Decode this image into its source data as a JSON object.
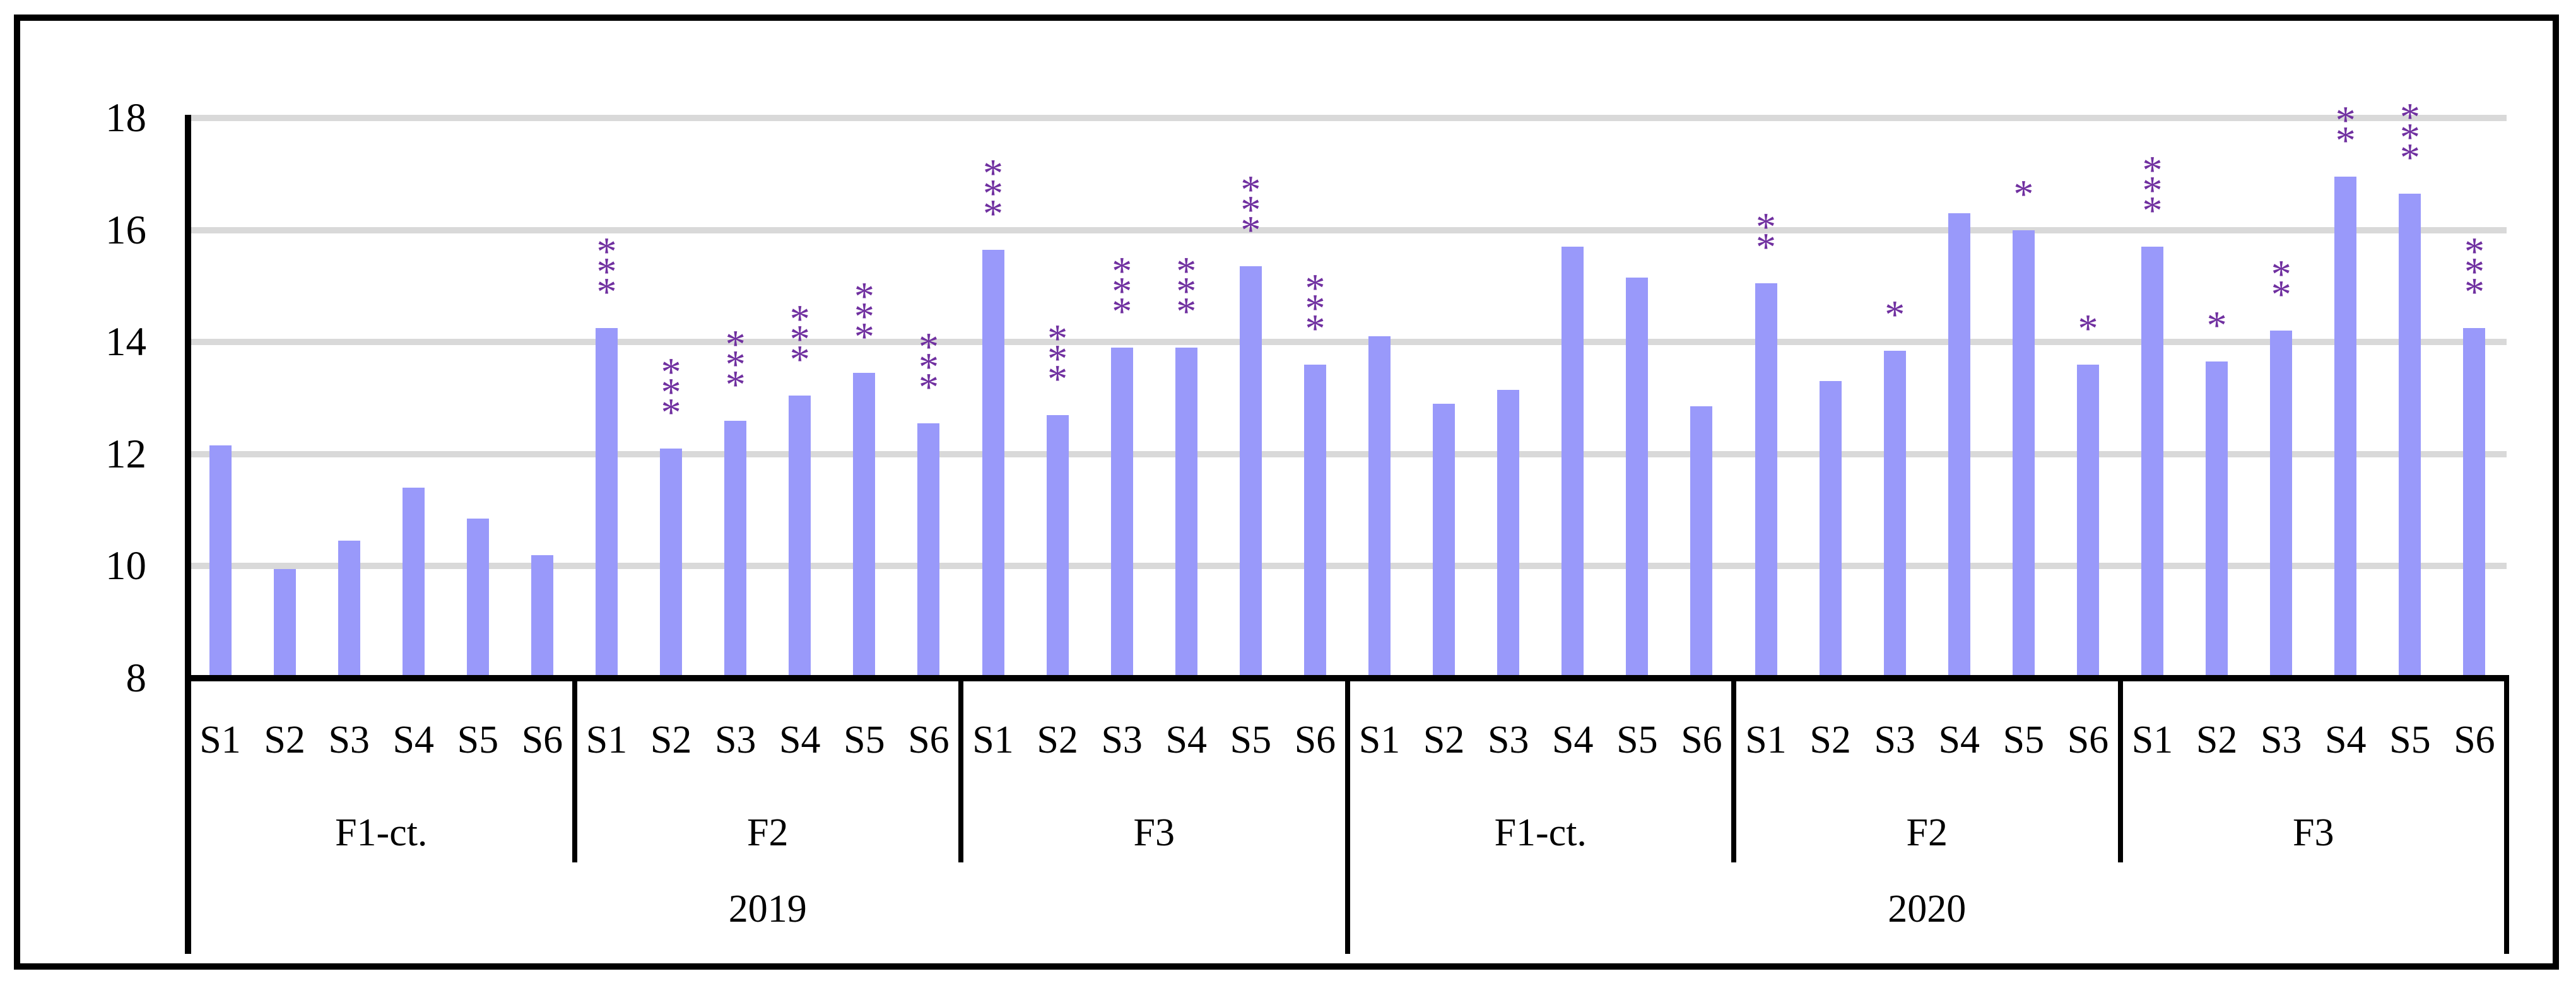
{
  "figure": {
    "background": "#ffffff",
    "border_color": "#000000"
  },
  "chart_data": {
    "type": "bar",
    "title": "",
    "xlabel": "",
    "ylabel": "",
    "ylim": [
      8,
      18
    ],
    "yticks": [
      8,
      10,
      12,
      14,
      16,
      18
    ],
    "grid": true,
    "legend": false,
    "bar_color": "#9999FA",
    "significance_color": "#7030A0",
    "gridline_color": "#D9D9D9",
    "axis_color": "#000000",
    "significance_marker": "*",
    "years": [
      {
        "label": "2019",
        "groups": [
          {
            "label": "F1-ct.",
            "bars": [
              {
                "label": "S1",
                "value": 12.15,
                "stars": 0
              },
              {
                "label": "S2",
                "value": 9.95,
                "stars": 0
              },
              {
                "label": "S3",
                "value": 10.45,
                "stars": 0
              },
              {
                "label": "S4",
                "value": 11.4,
                "stars": 0
              },
              {
                "label": "S5",
                "value": 10.85,
                "stars": 0
              },
              {
                "label": "S6",
                "value": 10.2,
                "stars": 0
              }
            ]
          },
          {
            "label": "F2",
            "bars": [
              {
                "label": "S1",
                "value": 14.25,
                "stars": 3
              },
              {
                "label": "S2",
                "value": 12.1,
                "stars": 3
              },
              {
                "label": "S3",
                "value": 12.6,
                "stars": 3
              },
              {
                "label": "S4",
                "value": 13.05,
                "stars": 3
              },
              {
                "label": "S5",
                "value": 13.45,
                "stars": 3
              },
              {
                "label": "S6",
                "value": 12.55,
                "stars": 3
              }
            ]
          },
          {
            "label": "F3",
            "bars": [
              {
                "label": "S1",
                "value": 15.65,
                "stars": 3
              },
              {
                "label": "S2",
                "value": 12.7,
                "stars": 3
              },
              {
                "label": "S3",
                "value": 13.9,
                "stars": 3
              },
              {
                "label": "S4",
                "value": 13.9,
                "stars": 3
              },
              {
                "label": "S5",
                "value": 15.35,
                "stars": 3
              },
              {
                "label": "S6",
                "value": 13.6,
                "stars": 3
              }
            ]
          }
        ]
      },
      {
        "label": "2020",
        "groups": [
          {
            "label": "F1-ct.",
            "bars": [
              {
                "label": "S1",
                "value": 14.1,
                "stars": 0
              },
              {
                "label": "S2",
                "value": 12.9,
                "stars": 0
              },
              {
                "label": "S3",
                "value": 13.15,
                "stars": 0
              },
              {
                "label": "S4",
                "value": 15.7,
                "stars": 0
              },
              {
                "label": "S5",
                "value": 15.15,
                "stars": 0
              },
              {
                "label": "S6",
                "value": 12.85,
                "stars": 0
              }
            ]
          },
          {
            "label": "F2",
            "bars": [
              {
                "label": "S1",
                "value": 15.05,
                "stars": 2
              },
              {
                "label": "S2",
                "value": 13.3,
                "stars": 0
              },
              {
                "label": "S3",
                "value": 13.85,
                "stars": 1
              },
              {
                "label": "S4",
                "value": 16.3,
                "stars": 0
              },
              {
                "label": "S5",
                "value": 16.0,
                "stars": 1
              },
              {
                "label": "S6",
                "value": 13.6,
                "stars": 1
              }
            ]
          },
          {
            "label": "F3",
            "bars": [
              {
                "label": "S1",
                "value": 15.7,
                "stars": 3
              },
              {
                "label": "S2",
                "value": 13.65,
                "stars": 1
              },
              {
                "label": "S3",
                "value": 14.2,
                "stars": 2
              },
              {
                "label": "S4",
                "value": 16.95,
                "stars": 2
              },
              {
                "label": "S5",
                "value": 16.65,
                "stars": 3
              },
              {
                "label": "S6",
                "value": 14.25,
                "stars": 3
              }
            ]
          }
        ]
      }
    ]
  }
}
